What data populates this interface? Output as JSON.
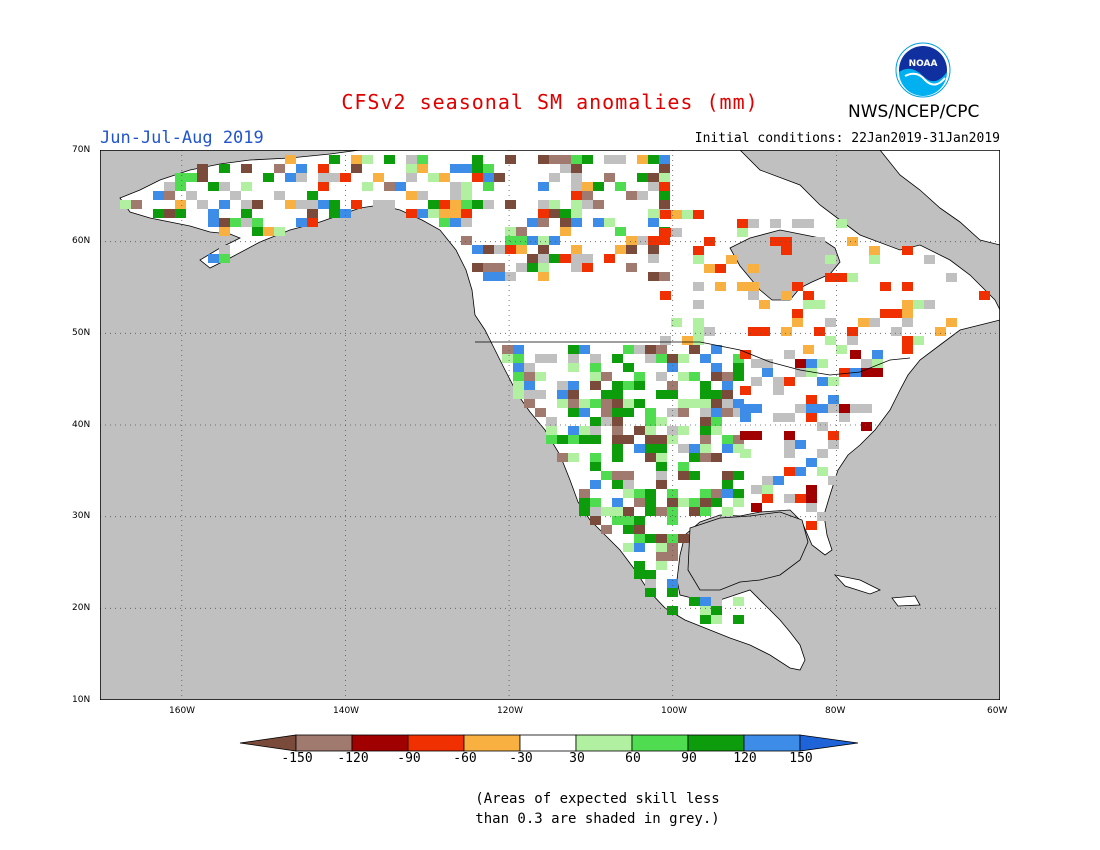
{
  "title": "CFSv2 seasonal SM anomalies (mm)",
  "organization": "NWS/NCEP/CPC",
  "logo_text": "NOAA",
  "season": "Jun-Jul-Aug 2019",
  "initial_conditions": "Initial conditions: 22Jan2019-31Jan2019",
  "lat_labels": [
    "70N",
    "60N",
    "50N",
    "40N",
    "30N",
    "20N",
    "10N"
  ],
  "lon_labels": [
    "160W",
    "140W",
    "120W",
    "100W",
    "80W",
    "60W"
  ],
  "colorbar": {
    "labels": [
      "-150",
      "-120",
      "-90",
      "-60",
      "-30",
      "30",
      "60",
      "90",
      "120",
      "150"
    ],
    "colors": [
      "#7a4a3a",
      "#a07a6e",
      "#a00000",
      "#f03000",
      "#f8b040",
      "#ffffff",
      "#b0f0a0",
      "#50dc50",
      "#0c9c0c",
      "#3c8ce8",
      "#1e64d8"
    ]
  },
  "colors": {
    "land": "#ffffff",
    "low_skill_grey": "#c0c0c0",
    "ocean": "#c0c0c0"
  },
  "footnote_line1": "(Areas of expected skill less",
  "footnote_line2": "than 0.3 are shaded in grey.)"
}
